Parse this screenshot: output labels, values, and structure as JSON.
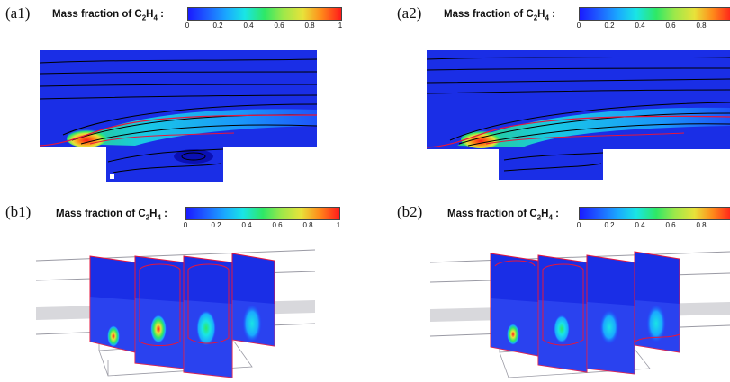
{
  "panels": [
    {
      "label": "(a1)",
      "cb_title": "Mass fraction of C",
      "cb_sub1": "2",
      "cb_mid": "H",
      "cb_sub2": "4",
      "cb_colon": " :"
    },
    {
      "label": "(a2)",
      "cb_title": "Mass fraction of C",
      "cb_sub1": "2",
      "cb_mid": "H",
      "cb_sub2": "4",
      "cb_colon": " :"
    },
    {
      "label": "(b1)",
      "cb_title": "Mass fraction of C",
      "cb_sub1": "2",
      "cb_mid": "H",
      "cb_sub2": "4",
      "cb_colon": " :"
    },
    {
      "label": "(b2)",
      "cb_title": "Mass fraction of C",
      "cb_sub1": "2",
      "cb_mid": "H",
      "cb_sub2": "4",
      "cb_colon": " :"
    }
  ],
  "colorbar_ticks_full": [
    "0",
    "0.2",
    "0.4",
    "0.6",
    "0.8",
    "1"
  ],
  "colorbar_ticks_cut": [
    "0",
    "0.2",
    "0.4",
    "0.6",
    "0.8"
  ],
  "colors": {
    "field_blue": "#1a2ee6",
    "deep_blue": "#0a10b4",
    "flame_red": "#ff1a1a",
    "contour_red": "#e6163c"
  }
}
